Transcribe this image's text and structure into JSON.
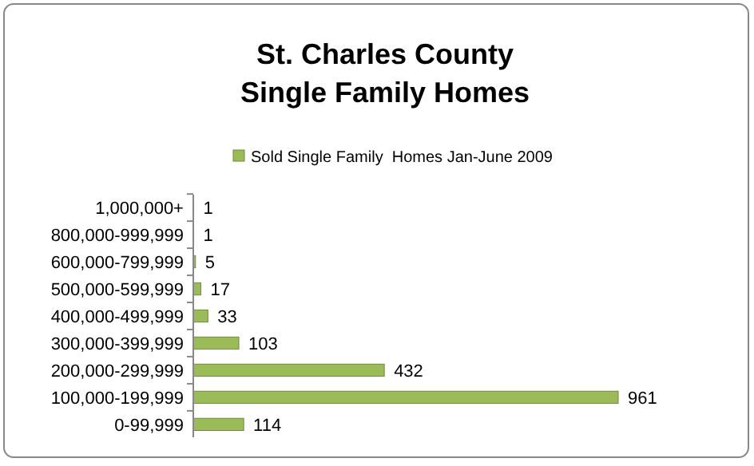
{
  "chart_data": {
    "type": "bar",
    "orientation": "horizontal",
    "title": "St. Charles County\nSingle Family Homes",
    "categories": [
      "1,000,000+",
      "800,000-999,999",
      "600,000-799,999",
      "500,000-599,999",
      "400,000-499,999",
      "300,000-399,999",
      "200,000-299,999",
      "100,000-199,999",
      "0-99,999"
    ],
    "series": [
      {
        "name": "Sold Single Family  Homes Jan-June 2009",
        "color": "#9bbb59",
        "values": [
          1,
          1,
          5,
          17,
          33,
          103,
          432,
          961,
          114
        ]
      }
    ],
    "data_labels": true,
    "legend": "top",
    "grid": false
  }
}
